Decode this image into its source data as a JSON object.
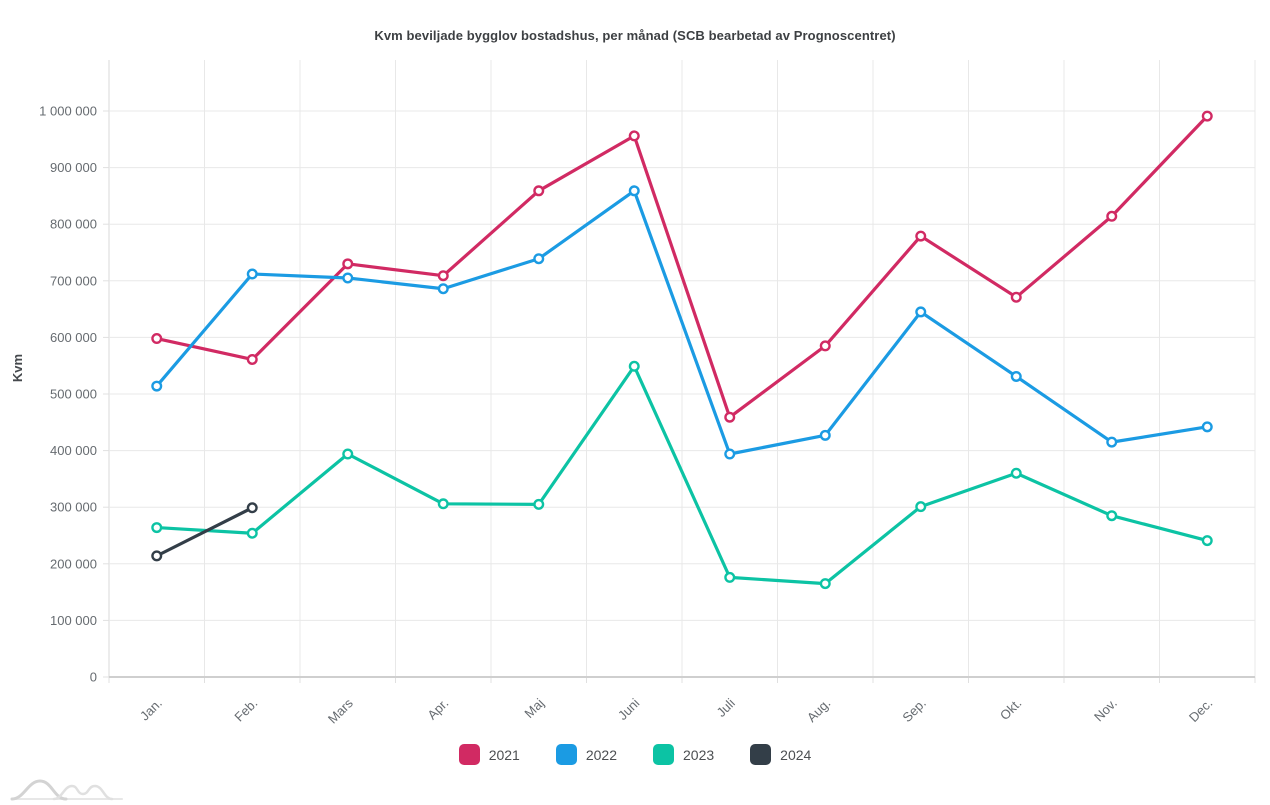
{
  "title": "Kvm beviljade bygglov bostadshus, per månad (SCB bearbetad av Prognoscentret)",
  "chart_data": {
    "type": "line",
    "title": "Kvm beviljade bygglov bostadshus, per månad (SCB bearbetad av Prognoscentret)",
    "xlabel": "",
    "ylabel": "Kvm",
    "ylim": [
      0,
      1090000
    ],
    "ytick_step": 100000,
    "ytick_labels": [
      "0",
      "100 000",
      "200 000",
      "300 000",
      "400 000",
      "500 000",
      "600 000",
      "700 000",
      "800 000",
      "900 000",
      "1 000 000"
    ],
    "grid": true,
    "legend_position": "bottom",
    "marker_style": "open-circle",
    "categories": [
      "Jan.",
      "Feb.",
      "Mars",
      "Apr.",
      "Maj",
      "Juni",
      "Juli",
      "Aug.",
      "Sep.",
      "Okt.",
      "Nov.",
      "Dec."
    ],
    "series": [
      {
        "name": "2021",
        "color": "#D12A63",
        "values": [
          598000,
          561000,
          730000,
          709000,
          859000,
          956000,
          459000,
          585000,
          779000,
          671000,
          814000,
          991000
        ]
      },
      {
        "name": "2022",
        "color": "#1B9BE3",
        "values": [
          514000,
          712000,
          705000,
          686000,
          739000,
          859000,
          394000,
          427000,
          645000,
          531000,
          415000,
          442000
        ]
      },
      {
        "name": "2023",
        "color": "#0CC3A4",
        "values": [
          264000,
          254000,
          394000,
          306000,
          305000,
          549000,
          176000,
          165000,
          301000,
          360000,
          285000,
          241000
        ]
      },
      {
        "name": "2024",
        "color": "#333E48",
        "values": [
          214000,
          299000
        ]
      }
    ]
  },
  "colors": {
    "grid": "#e8e8e8",
    "axis": "#cfcfcf",
    "tick_text": "#666b70",
    "title_text": "#3d4043"
  },
  "footer": {
    "logo_icon": "prognoscentret-mountains-logo"
  }
}
